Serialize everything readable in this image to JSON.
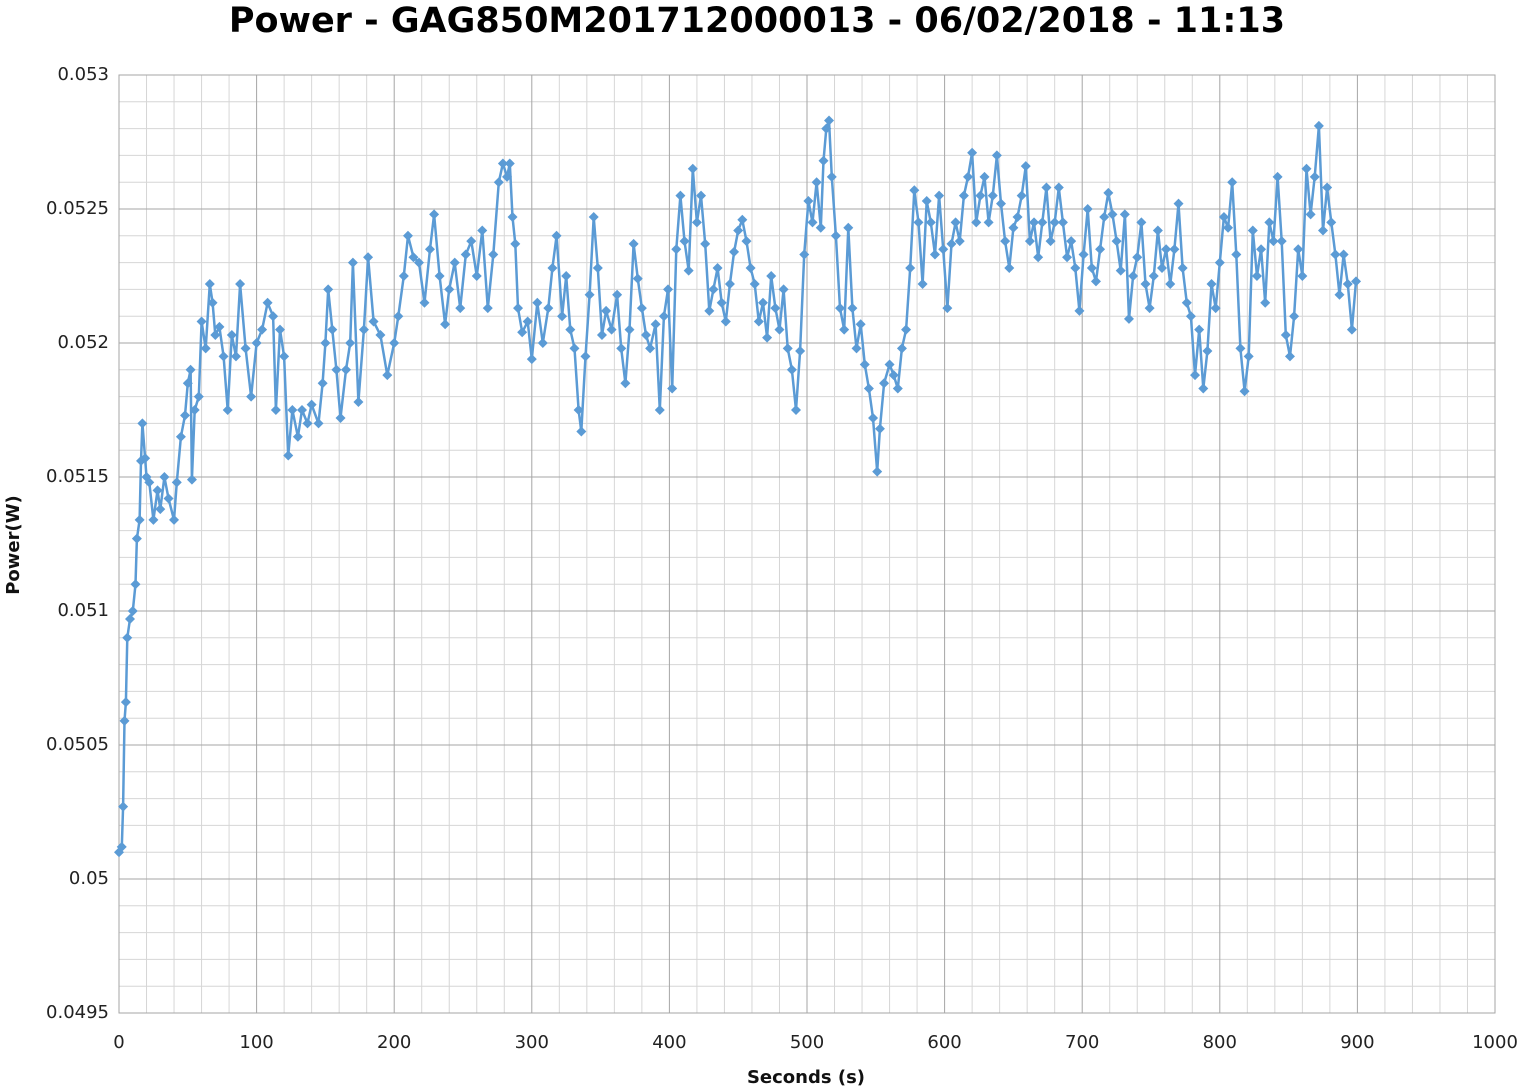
{
  "chart_data": {
    "type": "line",
    "title": "Power - GAG850M201712000013 - 06/02/2018 - 11:13",
    "x_label": "Seconds (s)",
    "y_label": "Power(W)",
    "color": "#5b9bd5",
    "grid": true,
    "marker": "diamond",
    "xlim": [
      0,
      1000
    ],
    "xticks": [
      0,
      100,
      200,
      300,
      400,
      500,
      600,
      700,
      800,
      900,
      1000
    ],
    "ylim": [
      0.0495,
      0.053
    ],
    "yticks": [
      0.0495,
      0.05,
      0.0505,
      0.051,
      0.0515,
      0.052,
      0.0525,
      0.053
    ],
    "x": [
      0,
      2,
      3,
      4,
      5,
      6,
      8,
      10,
      12,
      13,
      15,
      16,
      17,
      19,
      20,
      22,
      25,
      28,
      30,
      33,
      36,
      40,
      42,
      45,
      48,
      50,
      52,
      53,
      55,
      58,
      60,
      63,
      66,
      68,
      70,
      73,
      76,
      79,
      82,
      85,
      88,
      92,
      96,
      100,
      104,
      108,
      112,
      114,
      117,
      120,
      123,
      126,
      130,
      133,
      137,
      140,
      145,
      148,
      150,
      152,
      155,
      158,
      161,
      165,
      168,
      170,
      174,
      178,
      181,
      185,
      190,
      195,
      200,
      203,
      207,
      210,
      214,
      218,
      222,
      226,
      229,
      233,
      237,
      240,
      244,
      248,
      252,
      256,
      260,
      264,
      268,
      272,
      276,
      279,
      282,
      284,
      286,
      288,
      290,
      293,
      297,
      300,
      304,
      308,
      312,
      315,
      318,
      322,
      325,
      328,
      331,
      334,
      336,
      339,
      342,
      345,
      348,
      351,
      354,
      358,
      362,
      365,
      368,
      371,
      374,
      377,
      380,
      383,
      386,
      390,
      393,
      396,
      399,
      402,
      405,
      408,
      411,
      414,
      417,
      420,
      423,
      426,
      429,
      432,
      435,
      438,
      441,
      444,
      447,
      450,
      453,
      456,
      459,
      462,
      465,
      468,
      471,
      474,
      477,
      480,
      483,
      486,
      489,
      492,
      495,
      498,
      501,
      504,
      507,
      510,
      512,
      514,
      516,
      518,
      521,
      524,
      527,
      530,
      533,
      536,
      539,
      542,
      545,
      548,
      551,
      553,
      556,
      560,
      563,
      566,
      569,
      572,
      575,
      578,
      581,
      584,
      587,
      590,
      593,
      596,
      599,
      602,
      605,
      608,
      611,
      614,
      617,
      620,
      623,
      626,
      629,
      632,
      635,
      638,
      641,
      644,
      647,
      650,
      653,
      656,
      659,
      662,
      665,
      668,
      671,
      674,
      677,
      680,
      683,
      686,
      689,
      692,
      695,
      698,
      701,
      704,
      707,
      710,
      713,
      716,
      719,
      722,
      725,
      728,
      731,
      734,
      737,
      740,
      743,
      746,
      749,
      752,
      755,
      758,
      761,
      764,
      767,
      770,
      773,
      776,
      779,
      782,
      785,
      788,
      791,
      794,
      797,
      800,
      803,
      806,
      809,
      812,
      815,
      818,
      821,
      824,
      827,
      830,
      833,
      836,
      839,
      842,
      845,
      848,
      851,
      854,
      857,
      860,
      863,
      866,
      869,
      872,
      875,
      878,
      881,
      884,
      887,
      890,
      893,
      896,
      899
    ],
    "values": [
      0.0501,
      0.05012,
      0.05027,
      0.05059,
      0.05066,
      0.0509,
      0.05097,
      0.051,
      0.0511,
      0.05127,
      0.05134,
      0.05156,
      0.0517,
      0.05157,
      0.0515,
      0.05148,
      0.05134,
      0.05145,
      0.05138,
      0.0515,
      0.05142,
      0.05134,
      0.05148,
      0.05165,
      0.05173,
      0.05185,
      0.0519,
      0.05149,
      0.05175,
      0.0518,
      0.05208,
      0.05198,
      0.05222,
      0.05215,
      0.05203,
      0.05206,
      0.05195,
      0.05175,
      0.05203,
      0.05195,
      0.05222,
      0.05198,
      0.0518,
      0.052,
      0.05205,
      0.05215,
      0.0521,
      0.05175,
      0.05205,
      0.05195,
      0.05158,
      0.05175,
      0.05165,
      0.05175,
      0.0517,
      0.05177,
      0.0517,
      0.05185,
      0.052,
      0.0522,
      0.05205,
      0.0519,
      0.05172,
      0.0519,
      0.052,
      0.0523,
      0.05178,
      0.05205,
      0.05232,
      0.05208,
      0.05203,
      0.05188,
      0.052,
      0.0521,
      0.05225,
      0.0524,
      0.05232,
      0.0523,
      0.05215,
      0.05235,
      0.05248,
      0.05225,
      0.05207,
      0.0522,
      0.0523,
      0.05213,
      0.05233,
      0.05238,
      0.05225,
      0.05242,
      0.05213,
      0.05233,
      0.0526,
      0.05267,
      0.05262,
      0.05267,
      0.05247,
      0.05237,
      0.05213,
      0.05204,
      0.05208,
      0.05194,
      0.05215,
      0.052,
      0.05213,
      0.05228,
      0.0524,
      0.0521,
      0.05225,
      0.05205,
      0.05198,
      0.05175,
      0.05167,
      0.05195,
      0.05218,
      0.05247,
      0.05228,
      0.05203,
      0.05212,
      0.05205,
      0.05218,
      0.05198,
      0.05185,
      0.05205,
      0.05237,
      0.05224,
      0.05213,
      0.05203,
      0.05198,
      0.05207,
      0.05175,
      0.0521,
      0.0522,
      0.05183,
      0.05235,
      0.05255,
      0.05238,
      0.05227,
      0.05265,
      0.05245,
      0.05255,
      0.05237,
      0.05212,
      0.0522,
      0.05228,
      0.05215,
      0.05208,
      0.05222,
      0.05234,
      0.05242,
      0.05246,
      0.05238,
      0.05228,
      0.05222,
      0.05208,
      0.05215,
      0.05202,
      0.05225,
      0.05213,
      0.05205,
      0.0522,
      0.05198,
      0.0519,
      0.05175,
      0.05197,
      0.05233,
      0.05253,
      0.05245,
      0.0526,
      0.05243,
      0.05268,
      0.0528,
      0.05283,
      0.05262,
      0.0524,
      0.05213,
      0.05205,
      0.05243,
      0.05213,
      0.05198,
      0.05207,
      0.05192,
      0.05183,
      0.05172,
      0.05152,
      0.05168,
      0.05185,
      0.05192,
      0.05188,
      0.05183,
      0.05198,
      0.05205,
      0.05228,
      0.05257,
      0.05245,
      0.05222,
      0.05253,
      0.05245,
      0.05233,
      0.05255,
      0.05235,
      0.05213,
      0.05237,
      0.05245,
      0.05238,
      0.05255,
      0.05262,
      0.05271,
      0.05245,
      0.05255,
      0.05262,
      0.05245,
      0.05255,
      0.0527,
      0.05252,
      0.05238,
      0.05228,
      0.05243,
      0.05247,
      0.05255,
      0.05266,
      0.05238,
      0.05245,
      0.05232,
      0.05245,
      0.05258,
      0.05238,
      0.05245,
      0.05258,
      0.05245,
      0.05232,
      0.05238,
      0.05228,
      0.05212,
      0.05233,
      0.0525,
      0.05228,
      0.05223,
      0.05235,
      0.05247,
      0.05256,
      0.05248,
      0.05238,
      0.05227,
      0.05248,
      0.05209,
      0.05225,
      0.05232,
      0.05245,
      0.05222,
      0.05213,
      0.05225,
      0.05242,
      0.05228,
      0.05235,
      0.05222,
      0.05235,
      0.05252,
      0.05228,
      0.05215,
      0.0521,
      0.05188,
      0.05205,
      0.05183,
      0.05197,
      0.05222,
      0.05213,
      0.0523,
      0.05247,
      0.05243,
      0.0526,
      0.05233,
      0.05198,
      0.05182,
      0.05195,
      0.05242,
      0.05225,
      0.05235,
      0.05215,
      0.05245,
      0.05238,
      0.05262,
      0.05238,
      0.05203,
      0.05195,
      0.0521,
      0.05235,
      0.05225,
      0.05265,
      0.05248,
      0.05262,
      0.05281,
      0.05242,
      0.05258,
      0.05245,
      0.05233,
      0.05218,
      0.05233,
      0.05222,
      0.05205,
      0.05223
    ]
  }
}
